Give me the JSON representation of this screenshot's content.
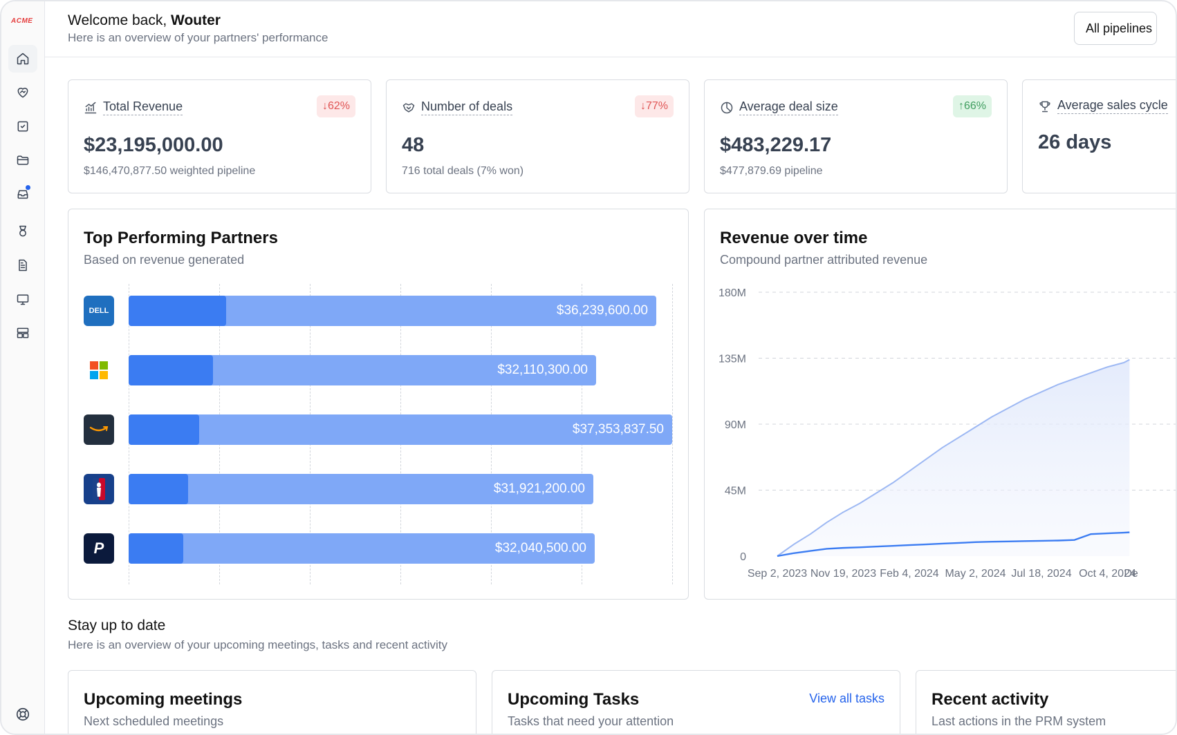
{
  "app": {
    "logo": "ACME"
  },
  "header": {
    "welcome_prefix": "Welcome back, ",
    "user_name": "Wouter",
    "subtitle": "Here is an overview of your partners' performance",
    "pipeline_selector": "All pipelines"
  },
  "sidebar": {
    "items": [
      {
        "icon": "home-icon",
        "active": true
      },
      {
        "icon": "handshake-icon"
      },
      {
        "icon": "checkbox-icon"
      },
      {
        "icon": "folder-icon"
      },
      {
        "icon": "inbox-icon",
        "notification": true
      },
      {
        "icon": "award-icon"
      },
      {
        "icon": "document-icon"
      },
      {
        "icon": "monitor-icon"
      },
      {
        "icon": "layout-icon"
      }
    ],
    "footer_icon": "help-icon"
  },
  "stats": [
    {
      "title": "Total Revenue",
      "icon": "chart-icon",
      "change": "↓62%",
      "direction": "down",
      "value": "$23,195,000.00",
      "sub": "$146,470,877.50 weighted pipeline"
    },
    {
      "title": "Number of deals",
      "icon": "handshake-icon",
      "change": "↓77%",
      "direction": "down",
      "value": "48",
      "sub": "716 total deals (7% won)"
    },
    {
      "title": "Average deal size",
      "icon": "pie-icon",
      "change": "↑66%",
      "direction": "up",
      "value": "$483,229.17",
      "sub": "$477,879.69 pipeline"
    },
    {
      "title": "Average sales cycle",
      "icon": "trophy-icon",
      "change": "",
      "direction": "",
      "value": "26 days",
      "sub": ""
    }
  ],
  "top_partners": {
    "title": "Top Performing Partners",
    "subtitle": "Based on revenue generated",
    "partners": [
      {
        "name": "Dell Technologies",
        "logo": "dell-logo",
        "logo_text": "DELL",
        "total": 36239600.0,
        "label": "$36,239,600.00",
        "won_fraction": 0.18
      },
      {
        "name": "Microsoft",
        "logo": "microsoft-logo",
        "logo_text": "",
        "total": 32110300.0,
        "label": "$32,110,300.00",
        "won_fraction": 0.155
      },
      {
        "name": "Amazon",
        "logo": "amazon-logo",
        "logo_text": "",
        "total": 37353837.5,
        "label": "$37,353,837.50",
        "won_fraction": 0.13
      },
      {
        "name": "NBA",
        "logo": "nba-logo",
        "logo_text": "",
        "total": 31921200.0,
        "label": "$31,921,200.00",
        "won_fraction": 0.11
      },
      {
        "name": "PayPal",
        "logo": "paypal-logo",
        "logo_text": "P",
        "total": 32040500.0,
        "label": "$32,040,500.00",
        "won_fraction": 0.1
      }
    ],
    "max_value": 37353837.5
  },
  "revenue_chart": {
    "title": "Revenue over time",
    "subtitle": "Compound partner attributed revenue"
  },
  "chart_data": {
    "type": "area",
    "title": "Revenue over time",
    "subtitle": "Compound partner attributed revenue",
    "y_ticks": [
      "0",
      "45M",
      "90M",
      "135M",
      "180M"
    ],
    "ylim": [
      0,
      180000000
    ],
    "x_ticks": [
      "Sep 2, 2023",
      "Nov 19, 2023",
      "Feb 4, 2024",
      "May 2, 2024",
      "Jul 18, 2024",
      "Oct 4, 2024",
      "De"
    ],
    "x_days": [
      0,
      120,
      240,
      360,
      480,
      600,
      640
    ],
    "series": [
      {
        "color": "#9db8f3",
        "x": [
          0,
          30,
          60,
          90,
          120,
          150,
          180,
          210,
          240,
          270,
          300,
          330,
          360,
          390,
          420,
          450,
          480,
          510,
          540,
          570,
          600,
          630,
          640
        ],
        "y": [
          0,
          8000000,
          15000000,
          23000000,
          30000000,
          36000000,
          43000000,
          50000000,
          58000000,
          66000000,
          74000000,
          81000000,
          88000000,
          95000000,
          101000000,
          107000000,
          112000000,
          117000000,
          121000000,
          125000000,
          129000000,
          132000000,
          134000000
        ]
      },
      {
        "color": "#3b7cf2",
        "x": [
          0,
          30,
          60,
          90,
          120,
          150,
          180,
          210,
          240,
          270,
          300,
          330,
          360,
          390,
          420,
          450,
          480,
          510,
          540,
          570,
          600,
          630,
          640
        ],
        "y": [
          0,
          2000000,
          3500000,
          5000000,
          5600000,
          6000000,
          6500000,
          7000000,
          7500000,
          8000000,
          8500000,
          9000000,
          9500000,
          9800000,
          10000000,
          10200000,
          10400000,
          10600000,
          11000000,
          15000000,
          15500000,
          16000000,
          16200000
        ]
      }
    ]
  },
  "stay_up_to_date": {
    "title": "Stay up to date",
    "subtitle": "Here is an overview of your upcoming meetings, tasks and recent activity"
  },
  "bottom_cards": [
    {
      "title": "Upcoming meetings",
      "subtitle": "Next scheduled meetings",
      "action": ""
    },
    {
      "title": "Upcoming Tasks",
      "subtitle": "Tasks that need your attention",
      "action": "View all tasks"
    },
    {
      "title": "Recent activity",
      "subtitle": "Last actions in the PRM system",
      "action": ""
    }
  ]
}
